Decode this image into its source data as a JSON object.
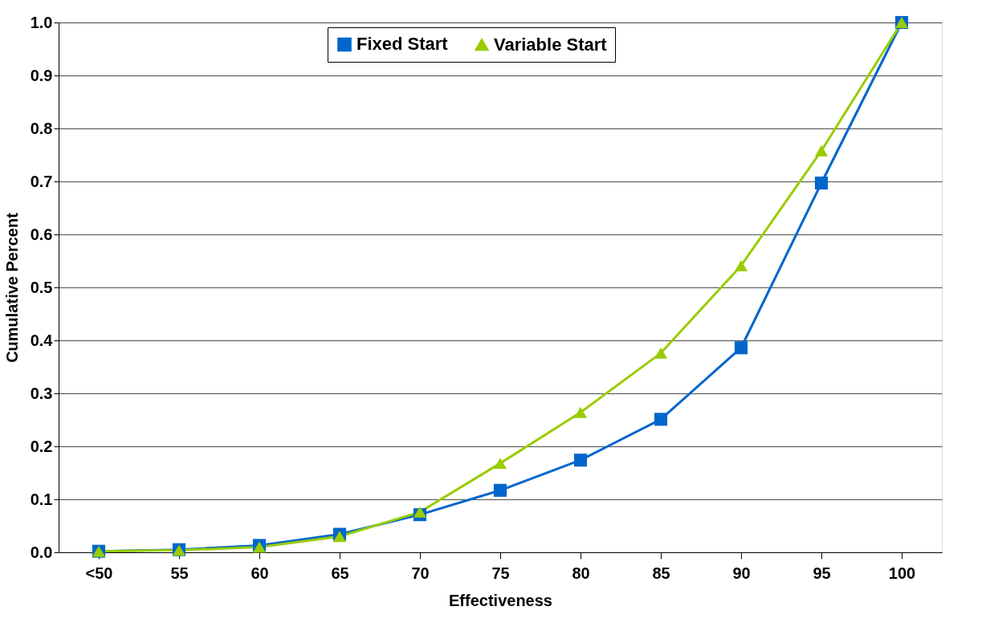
{
  "chart_data": {
    "type": "line",
    "xlabel": "Effectiveness",
    "ylabel": "Cumulative Percent",
    "categories": [
      "<50",
      "55",
      "60",
      "65",
      "70",
      "75",
      "80",
      "85",
      "90",
      "95",
      "100"
    ],
    "ylim": [
      0,
      1
    ],
    "yticks": [
      {
        "value": 0,
        "label": "0.0"
      },
      0.1,
      0.2,
      0.3,
      0.4,
      0.5,
      0.6,
      0.7,
      0.8,
      0.9,
      {
        "value": 1,
        "label": "1.0"
      }
    ],
    "grid": "y",
    "legend": "top",
    "line_style": "solid",
    "series": [
      {
        "name": "Fixed Start",
        "color": "#0066cc",
        "marker": "square",
        "values": [
          0.002,
          0.005,
          0.013,
          0.034,
          0.071,
          0.117,
          0.174,
          0.251,
          0.386,
          0.697,
          1.0
        ]
      },
      {
        "name": "Variable Start",
        "color": "#99cc00",
        "marker": "triangle",
        "values": [
          0.002,
          0.004,
          0.01,
          0.03,
          0.076,
          0.168,
          0.264,
          0.376,
          0.541,
          0.758,
          1.0
        ]
      }
    ]
  }
}
